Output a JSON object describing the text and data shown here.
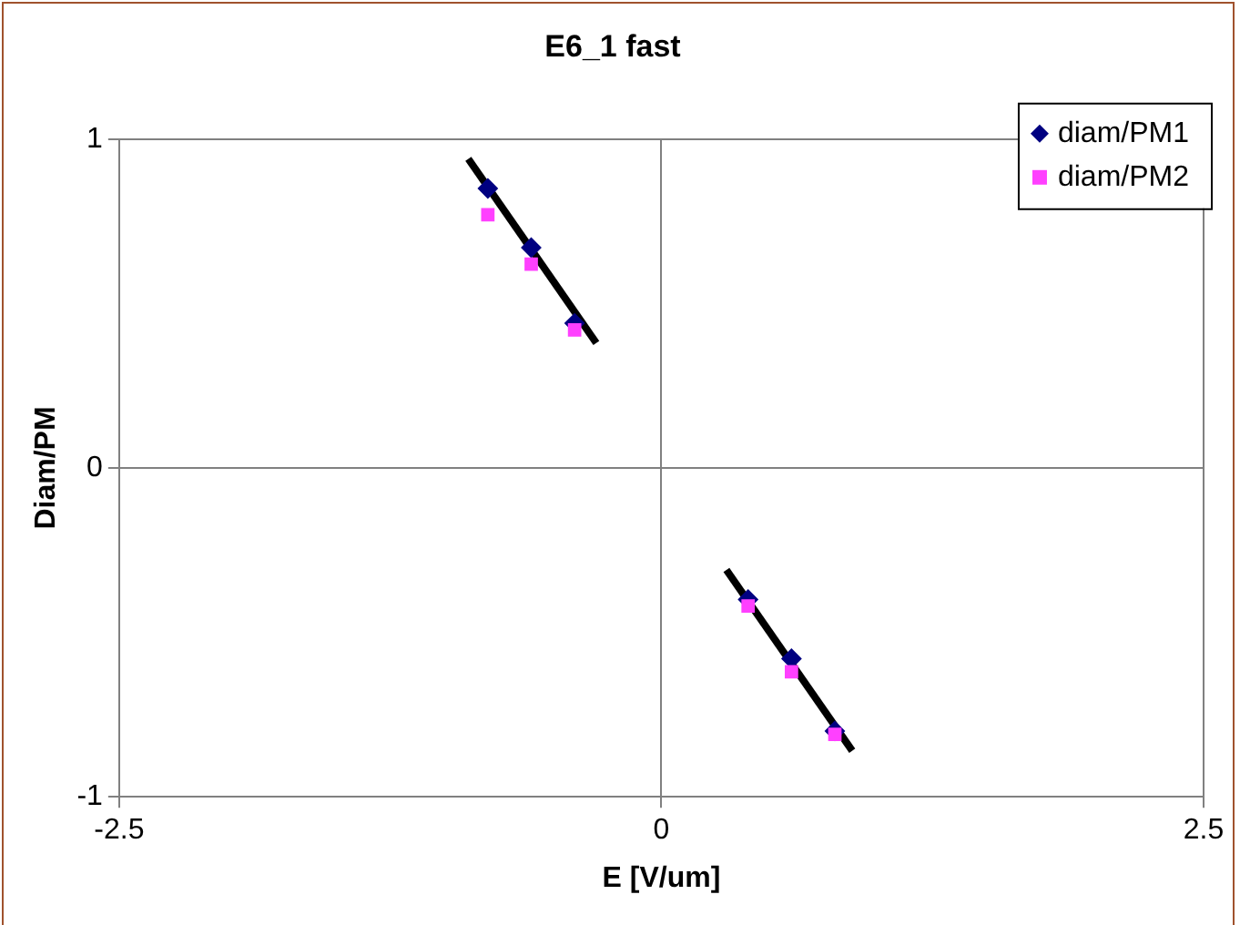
{
  "chart_data": {
    "type": "scatter",
    "title": "E6_1 fast",
    "xlabel": "E [V/um]",
    "ylabel": "Diam/PM",
    "xlim": [
      -2.5,
      2.5
    ],
    "xticks": [
      -2.5,
      0,
      2.5
    ],
    "ylim": [
      -1,
      1
    ],
    "yticks": [
      -1,
      0,
      1
    ],
    "grid": true,
    "legend": "top right",
    "series": [
      {
        "name": "diam/PM1",
        "color": "#000080",
        "marker": "diamond",
        "x": [
          -0.8,
          -0.6,
          -0.4,
          0.4,
          0.6,
          0.8
        ],
        "values": [
          0.85,
          0.67,
          0.44,
          -0.4,
          -0.58,
          -0.8
        ]
      },
      {
        "name": "diam/PM2",
        "color": "#ff40ff",
        "marker": "square",
        "x": [
          -0.8,
          -0.6,
          -0.4,
          0.4,
          0.6,
          0.8
        ],
        "values": [
          0.77,
          0.62,
          0.42,
          -0.42,
          -0.62,
          -0.81
        ]
      },
      {
        "type": "line",
        "color": "#000000",
        "marker": "none",
        "x": [
          -0.89,
          -0.3
        ],
        "values": [
          0.94,
          0.38
        ]
      },
      {
        "type": "line",
        "color": "#000000",
        "marker": "none",
        "x": [
          0.3,
          0.88
        ],
        "values": [
          -0.31,
          -0.86
        ]
      }
    ]
  }
}
